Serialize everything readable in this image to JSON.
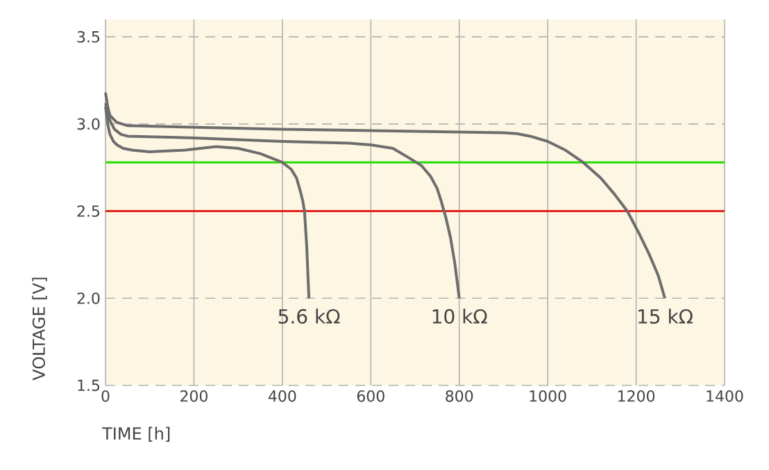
{
  "chart_data": {
    "type": "line",
    "xlabel": "TIME [h]",
    "ylabel": "VOLTAGE [V]",
    "xlim": [
      0,
      1400
    ],
    "ylim": [
      1.5,
      3.6
    ],
    "xticks": [
      0,
      200,
      400,
      600,
      800,
      1000,
      1200,
      1400
    ],
    "yticks": [
      1.5,
      {
        "value": 2,
        "label": "2.0"
      },
      2.5,
      {
        "value": 3,
        "label": "3.0"
      },
      3.5
    ],
    "grid": true,
    "legend": false,
    "marker": "none",
    "line_style": "solid",
    "ref_lines": [
      {
        "axis": "y",
        "value": 2.78,
        "color": "#22dd00"
      },
      {
        "axis": "y",
        "value": 2.5,
        "color": "#e8211b"
      }
    ],
    "series": [
      {
        "name": "5.6 kΩ",
        "color": "#6d6d6d",
        "x": [
          0,
          5,
          10,
          18,
          26,
          40,
          60,
          100,
          180,
          250,
          300,
          350,
          380,
          400,
          420,
          432,
          440,
          446,
          450,
          455,
          460
        ],
        "values": [
          3.1,
          3.0,
          2.94,
          2.9,
          2.88,
          2.86,
          2.85,
          2.84,
          2.85,
          2.87,
          2.86,
          2.83,
          2.8,
          2.78,
          2.74,
          2.69,
          2.62,
          2.56,
          2.5,
          2.3,
          2.0
        ]
      },
      {
        "name": "10 kΩ",
        "color": "#6d6d6d",
        "x": [
          0,
          10,
          20,
          35,
          50,
          200,
          400,
          550,
          600,
          650,
          690,
          715,
          735,
          750,
          760,
          770,
          780,
          790,
          800
        ],
        "values": [
          3.12,
          3.02,
          2.97,
          2.94,
          2.93,
          2.92,
          2.9,
          2.89,
          2.88,
          2.86,
          2.8,
          2.76,
          2.7,
          2.63,
          2.55,
          2.46,
          2.35,
          2.2,
          2.0
        ]
      },
      {
        "name": "15 kΩ",
        "color": "#6d6d6d",
        "x": [
          0,
          5,
          10,
          25,
          50,
          400,
          900,
          930,
          960,
          1000,
          1040,
          1080,
          1120,
          1150,
          1180,
          1205,
          1230,
          1250,
          1265
        ],
        "values": [
          3.18,
          3.1,
          3.05,
          3.01,
          2.99,
          2.97,
          2.95,
          2.945,
          2.93,
          2.9,
          2.85,
          2.78,
          2.69,
          2.6,
          2.5,
          2.38,
          2.25,
          2.13,
          2.0
        ]
      }
    ]
  }
}
